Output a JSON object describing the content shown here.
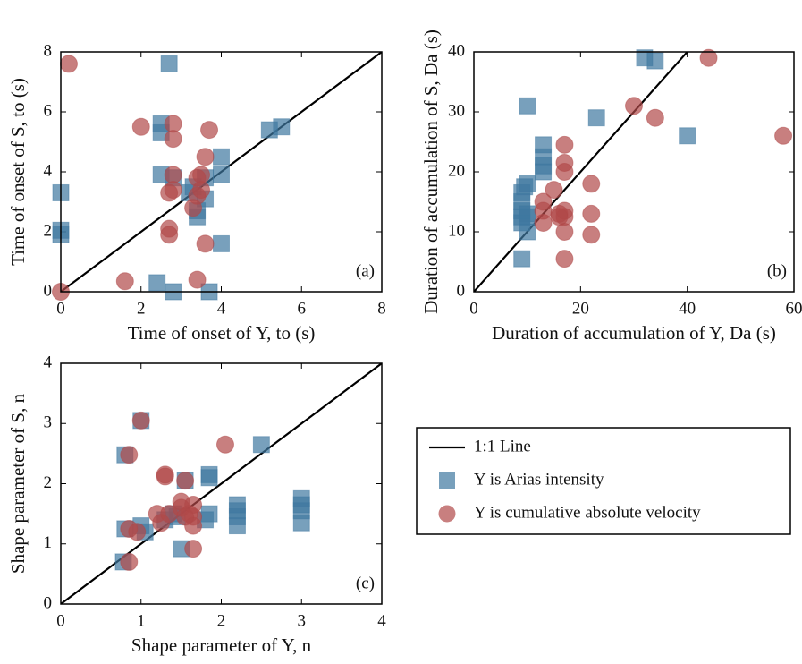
{
  "chart_data": [
    {
      "type": "scatter",
      "panel_label": "(a)",
      "xlabel": "Time of onset of Y, to (s)",
      "ylabel": "Time of onset of S, to (s)",
      "xlim": [
        0,
        8
      ],
      "ylim": [
        0,
        8
      ],
      "xticks": [
        0,
        2,
        4,
        6,
        8
      ],
      "yticks": [
        0,
        2,
        4,
        6,
        8
      ],
      "series": [
        {
          "name": "1:1 Line",
          "marker": "line",
          "color": "#000000",
          "x": [
            0,
            8
          ],
          "values": [
            0,
            8
          ]
        },
        {
          "name": "Y is Arias intensity",
          "marker": "square",
          "color": "#3f78a0",
          "x": [
            0,
            0,
            0,
            2.7,
            2.5,
            2.5,
            2.5,
            2.8,
            3.3,
            3.2,
            3.4,
            3.4,
            3.6,
            3.6,
            4.0,
            4.0,
            4.0,
            5.2,
            5.5,
            2.4,
            2.8,
            3.7
          ],
          "values": [
            3.3,
            2.05,
            1.9,
            7.6,
            5.6,
            5.3,
            3.9,
            3.8,
            3.5,
            3.3,
            2.7,
            2.5,
            3.1,
            3.8,
            4.5,
            3.9,
            1.6,
            5.4,
            5.5,
            0.3,
            0,
            0
          ]
        },
        {
          "name": "Y is cumulative absolute velocity",
          "marker": "circle",
          "color": "#b04848",
          "x": [
            0,
            0.2,
            1.6,
            2.0,
            2.8,
            2.8,
            2.8,
            2.7,
            2.8,
            2.7,
            2.7,
            3.4,
            3.5,
            3.7,
            3.6,
            3.4,
            3.6,
            3.4,
            3.3,
            3.5
          ],
          "values": [
            0,
            7.6,
            0.35,
            5.5,
            5.6,
            5.1,
            3.9,
            3.3,
            3.4,
            2.1,
            1.9,
            3.8,
            3.9,
            5.4,
            4.5,
            3.2,
            1.6,
            0.4,
            2.8,
            3.4
          ]
        }
      ]
    },
    {
      "type": "scatter",
      "panel_label": "(b)",
      "xlabel": "Duration of accumulation of Y, Da (s)",
      "ylabel": "Duration of accumulation of S, Da (s)",
      "xlim": [
        0,
        60
      ],
      "ylim": [
        0,
        40
      ],
      "xticks": [
        0,
        20,
        40,
        60
      ],
      "yticks": [
        0,
        10,
        20,
        30,
        40
      ],
      "series": [
        {
          "marker": "line",
          "color": "#000000",
          "x": [
            0,
            40
          ],
          "values": [
            0,
            40
          ]
        },
        {
          "marker": "square",
          "color": "#3f78a0",
          "x": [
            9,
            9,
            9,
            9,
            9,
            9.5,
            10,
            10,
            9,
            10,
            13,
            13,
            13,
            13,
            23,
            32,
            34,
            40,
            10,
            10
          ],
          "values": [
            11.5,
            12.5,
            13.5,
            15,
            16.5,
            17.5,
            18,
            10,
            5.5,
            31,
            21,
            22.5,
            24.5,
            20,
            29,
            39,
            38.5,
            26,
            12.5,
            13
          ]
        },
        {
          "marker": "circle",
          "color": "#b04848",
          "x": [
            13,
            13,
            13,
            15,
            16,
            17,
            17,
            17,
            17,
            17,
            17,
            17,
            22,
            22,
            22,
            30,
            34,
            44,
            58,
            16
          ],
          "values": [
            11.5,
            13.5,
            15,
            17,
            13,
            5.5,
            10,
            12.5,
            13.5,
            20,
            21.5,
            24.5,
            18,
            13,
            9.5,
            31,
            29,
            39,
            26,
            12.5
          ]
        }
      ]
    },
    {
      "type": "scatter",
      "panel_label": "(c)",
      "xlabel": "Shape parameter of Y, n",
      "ylabel": "Shape parameter of S, n",
      "xlim": [
        0,
        4
      ],
      "ylim": [
        0,
        4
      ],
      "xticks": [
        0,
        1,
        2,
        3,
        4
      ],
      "yticks": [
        0,
        1,
        2,
        3,
        4
      ],
      "series": [
        {
          "marker": "line",
          "color": "#000000",
          "x": [
            0,
            4
          ],
          "values": [
            0,
            4
          ]
        },
        {
          "marker": "square",
          "color": "#3f78a0",
          "x": [
            0.78,
            0.8,
            0.8,
            1.0,
            1.0,
            1.05,
            1.3,
            1.4,
            1.45,
            1.5,
            1.55,
            1.8,
            1.85,
            1.85,
            1.85,
            2.2,
            2.2,
            2.2,
            2.2,
            2.5,
            3.0,
            3.0,
            3.0,
            3.0
          ],
          "values": [
            0.7,
            1.25,
            2.48,
            3.05,
            1.3,
            1.2,
            1.4,
            1.5,
            1.45,
            0.92,
            2.05,
            1.4,
            2.15,
            2.1,
            1.5,
            1.3,
            1.45,
            1.55,
            1.65,
            2.65,
            1.35,
            1.55,
            1.65,
            1.75
          ]
        },
        {
          "marker": "circle",
          "color": "#b04848",
          "x": [
            0.85,
            0.85,
            0.85,
            1.0,
            0.95,
            1.2,
            1.25,
            1.3,
            1.3,
            1.35,
            1.5,
            1.5,
            1.55,
            1.6,
            1.65,
            1.65,
            1.65,
            1.65,
            2.05,
            1.55
          ],
          "values": [
            0.7,
            1.25,
            2.48,
            3.05,
            1.2,
            1.5,
            1.35,
            2.12,
            2.15,
            1.5,
            1.6,
            1.7,
            2.05,
            1.5,
            0.92,
            1.3,
            1.45,
            1.65,
            2.65,
            1.45
          ]
        }
      ]
    }
  ]
}
